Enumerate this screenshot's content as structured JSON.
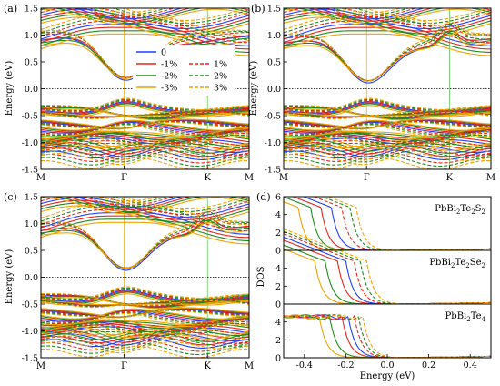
{
  "series_styles": [
    {
      "name": "0",
      "color": "#1f3fff",
      "dash": "solid"
    },
    {
      "name": "-1%",
      "color": "#e8261e",
      "dash": "solid"
    },
    {
      "name": "-2%",
      "color": "#1d8c1a",
      "dash": "solid"
    },
    {
      "name": "-3%",
      "color": "#f2a100",
      "dash": "solid"
    },
    {
      "name": "1%",
      "color": "#e8261e",
      "dash": "dashed"
    },
    {
      "name": "2%",
      "color": "#1d8c1a",
      "dash": "dashed"
    },
    {
      "name": "3%",
      "color": "#f2a100",
      "dash": "dashed"
    }
  ],
  "chart_data": [
    {
      "panel": "(a)",
      "type": "line",
      "kind": "band-structure",
      "ylabel": "Energy (eV)",
      "ylim": [
        -1.5,
        1.5
      ],
      "yticks": [
        1.5,
        1.0,
        0.5,
        0.0,
        -0.5,
        -1.0,
        -1.5
      ],
      "xticks": [
        "M",
        "Γ",
        "K",
        "M"
      ],
      "xtick_positions": [
        0,
        1,
        2,
        2.5
      ],
      "fermi_level": 0.0,
      "legend": {
        "position": "center",
        "entries": [
          "0",
          "-1%",
          "-2%",
          "-3%",
          "1%",
          "2%",
          "3%"
        ]
      },
      "cbm_at_gamma": {
        "0": 0.15,
        "-1%": 0.18,
        "-2%": 0.15,
        "-3%": 0.12,
        "1%": 0.22,
        "2%": 0.24,
        "3%": 0.26
      },
      "vbm_at_gamma": {
        "0": -0.28,
        "-1%": -0.3,
        "-2%": -0.32,
        "-3%": -0.35,
        "1%": -0.26,
        "2%": -0.24,
        "3%": -0.22
      }
    },
    {
      "panel": "(b)",
      "type": "line",
      "kind": "band-structure",
      "ylabel": "Energy (eV)",
      "ylim": [
        -1.5,
        1.5
      ],
      "yticks": [
        1.5,
        1.0,
        0.5,
        0.0,
        -0.5,
        -1.0,
        -1.5
      ],
      "xticks": [
        "M",
        "Γ",
        "K",
        "M"
      ],
      "xtick_positions": [
        0,
        1,
        2,
        2.5
      ],
      "fermi_level": 0.0,
      "cbm_at_gamma": {
        "0": 0.1,
        "-1%": 0.12,
        "-2%": 0.1,
        "-3%": 0.08,
        "1%": 0.16,
        "2%": 0.18,
        "3%": 0.2
      },
      "vbm_at_gamma": {
        "0": -0.28,
        "-1%": -0.3,
        "-2%": -0.32,
        "-3%": -0.35,
        "1%": -0.26,
        "2%": -0.24,
        "3%": -0.22
      }
    },
    {
      "panel": "(c)",
      "type": "line",
      "kind": "band-structure",
      "ylabel": "Energy (eV)",
      "ylim": [
        -1.5,
        1.5
      ],
      "yticks": [
        1.5,
        1.0,
        0.5,
        0.0,
        -0.5,
        -1.0,
        -1.5
      ],
      "xticks": [
        "M",
        "Γ",
        "K",
        "M"
      ],
      "xtick_positions": [
        0,
        1,
        2,
        2.5
      ],
      "fermi_level": 0.0,
      "cbm_at_gamma": {
        "0": 0.12,
        "-1%": 0.14,
        "-2%": 0.12,
        "-3%": 0.1,
        "1%": 0.17,
        "2%": 0.19,
        "3%": 0.21
      },
      "vbm_at_gamma": {
        "0": -0.28,
        "-1%": -0.3,
        "-2%": -0.32,
        "-3%": -0.35,
        "1%": -0.26,
        "2%": -0.24,
        "3%": -0.22
      }
    },
    {
      "panel": "(d)",
      "type": "line",
      "kind": "density-of-states",
      "xlabel": "Energy (eV)",
      "ylabel": "DOS",
      "xlim": [
        -0.5,
        0.5
      ],
      "xticks": [
        -0.4,
        -0.2,
        0.0,
        0.2,
        0.4
      ],
      "subplots": [
        {
          "label": "PbBi2Te2S2",
          "ylim": [
            0,
            6
          ],
          "yticks": [
            0,
            2,
            4,
            6
          ],
          "band_edge": {
            "-3%": -0.43,
            "-2%": -0.37,
            "-1%": -0.32,
            "0": -0.27,
            "1%": -0.22,
            "2%": -0.18,
            "3%": -0.15
          }
        },
        {
          "label": "PbBi2Te2Se2",
          "ylim": [
            0,
            6
          ],
          "yticks": [
            0,
            2,
            4
          ],
          "band_edge": {
            "-3%": -0.35,
            "-2%": -0.3,
            "-1%": -0.24,
            "0": -0.2,
            "1%": -0.16,
            "2%": -0.13,
            "3%": -0.1
          }
        },
        {
          "label": "PbBi2Te4",
          "ylim": [
            0,
            6
          ],
          "yticks": [
            0,
            2,
            4
          ],
          "band_edge": {
            "-3%": -0.33,
            "-2%": -0.28,
            "-1%": -0.22,
            "0": -0.19,
            "1%": -0.16,
            "2%": -0.14,
            "3%": -0.12
          }
        }
      ]
    }
  ]
}
